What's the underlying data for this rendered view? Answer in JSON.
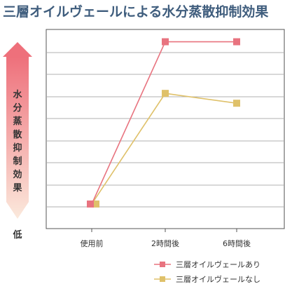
{
  "chart_data": {
    "type": "line",
    "title": "三層オイルヴェールによる水分蒸散抑制効果",
    "ylabel": "水分蒸散抑制効果",
    "ylabel_low": "低",
    "categories": [
      "使用前",
      "2時間後",
      "6時間後"
    ],
    "series": [
      {
        "name": "三層オイルヴェールあり",
        "values": [
          1,
          7.6,
          7.6
        ],
        "color": "#e8737f"
      },
      {
        "name": "三層オイルヴェールなし",
        "values": [
          1,
          5.5,
          5.1
        ],
        "color": "#dfc16a"
      }
    ],
    "ylim": [
      0,
      8.1
    ],
    "grid": true,
    "legend_position": "bottom-right"
  }
}
